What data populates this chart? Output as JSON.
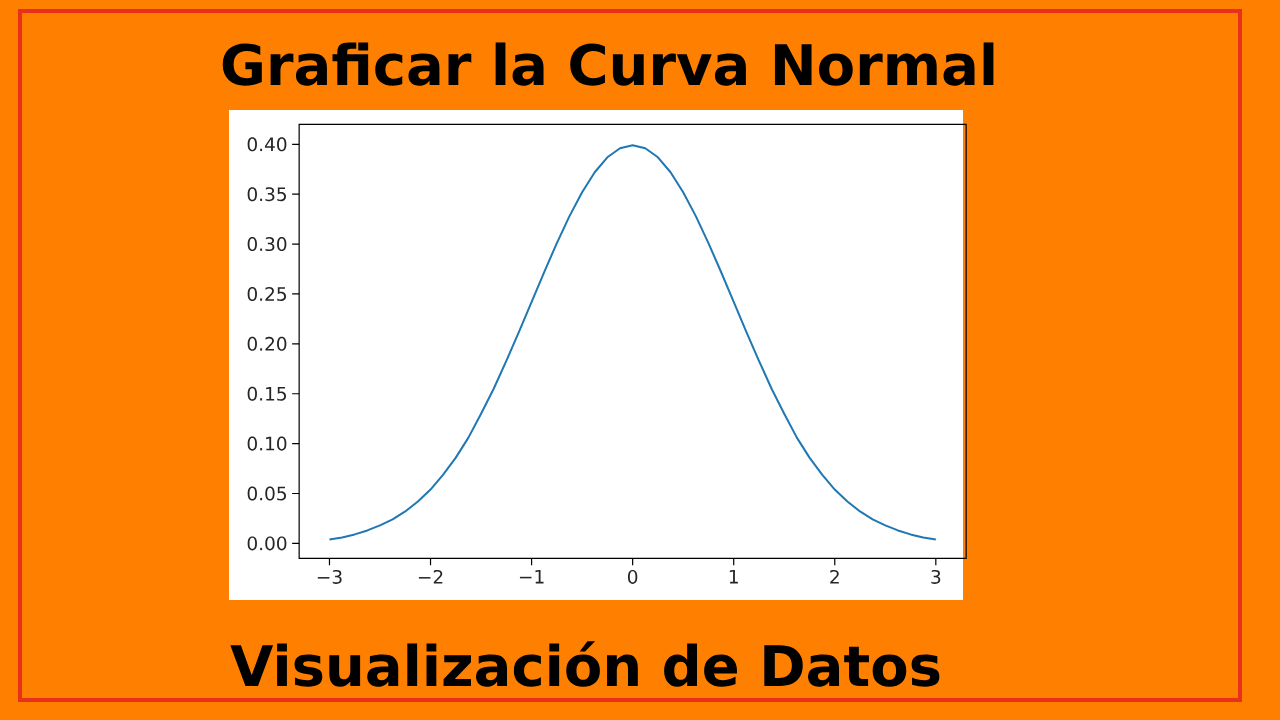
{
  "chart_data": {
    "type": "line",
    "title": "Graficar la Curva Normal",
    "annotations": [
      "Visualización de Datos"
    ],
    "x": [
      -3,
      -2.875,
      -2.75,
      -2.625,
      -2.5,
      -2.375,
      -2.25,
      -2.125,
      -2,
      -1.875,
      -1.75,
      -1.625,
      -1.5,
      -1.375,
      -1.25,
      -1.125,
      -1,
      -0.875,
      -0.75,
      -0.625,
      -0.5,
      -0.375,
      -0.25,
      -0.125,
      0,
      0.125,
      0.25,
      0.375,
      0.5,
      0.625,
      0.75,
      0.875,
      1,
      1.125,
      1.25,
      1.375,
      1.5,
      1.625,
      1.75,
      1.875,
      2,
      2.125,
      2.25,
      2.375,
      2.5,
      2.625,
      2.75,
      2.875,
      3
    ],
    "values": [
      0.004,
      0.006,
      0.009,
      0.013,
      0.018,
      0.024,
      0.032,
      0.042,
      0.054,
      0.069,
      0.086,
      0.106,
      0.13,
      0.155,
      0.183,
      0.212,
      0.242,
      0.272,
      0.301,
      0.328,
      0.352,
      0.372,
      0.387,
      0.396,
      0.399,
      0.396,
      0.387,
      0.372,
      0.352,
      0.328,
      0.301,
      0.272,
      0.242,
      0.212,
      0.183,
      0.155,
      0.13,
      0.106,
      0.086,
      0.069,
      0.054,
      0.042,
      0.032,
      0.024,
      0.018,
      0.013,
      0.009,
      0.006,
      0.004
    ],
    "color": "#1f77b4",
    "xlim": [
      -3.3,
      3.3
    ],
    "ylim": [
      -0.015,
      0.42
    ],
    "xticks": [
      {
        "value": -3,
        "label": "−3"
      },
      {
        "value": -2,
        "label": "−2"
      },
      {
        "value": -1,
        "label": "−1"
      },
      0,
      1,
      2,
      3
    ],
    "yticks": [
      {
        "value": 0,
        "label": "0.00"
      },
      {
        "value": 0.05,
        "label": "0.05"
      },
      {
        "value": 0.1,
        "label": "0.10"
      },
      {
        "value": 0.15,
        "label": "0.15"
      },
      {
        "value": 0.2,
        "label": "0.20"
      },
      {
        "value": 0.25,
        "label": "0.25"
      },
      {
        "value": 0.3,
        "label": "0.30"
      },
      {
        "value": 0.35,
        "label": "0.35"
      },
      {
        "value": 0.4,
        "label": "0.40"
      }
    ]
  }
}
